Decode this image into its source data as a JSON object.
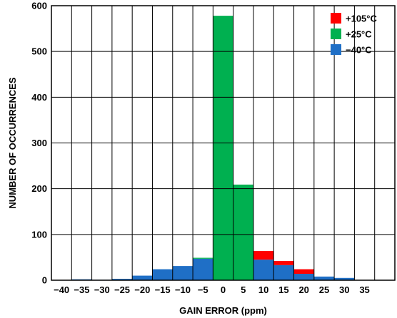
{
  "chart_data": {
    "type": "bar",
    "stacked": true,
    "xlabel": "GAIN ERROR (ppm)",
    "ylabel": "NUMBER OF OCCURRENCES",
    "ylim": [
      0,
      600
    ],
    "yticks": [
      0,
      100,
      200,
      300,
      400,
      500,
      600
    ],
    "xlim": [
      -42.5,
      42.5
    ],
    "xticks": [
      -40,
      -35,
      -30,
      -25,
      -20,
      -15,
      -10,
      -5,
      0,
      5,
      10,
      15,
      20,
      25,
      30,
      35
    ],
    "xtick_labels": [
      "−40",
      "−35",
      "−30",
      "−25",
      "−20",
      "−15",
      "−10",
      "−5",
      "0",
      "5",
      "10",
      "15",
      "20",
      "25",
      "30",
      "35"
    ],
    "bin_width": 5,
    "grid": true,
    "legend_position": "top-right",
    "categories": [
      -35,
      -30,
      -25,
      -20,
      -15,
      -10,
      -5,
      0,
      5,
      10,
      15,
      20,
      25,
      30
    ],
    "series": [
      {
        "name": "+105°C",
        "color": "#ff0000",
        "values": [
          0,
          0,
          0,
          0,
          0,
          0,
          0,
          0,
          0,
          19,
          9,
          10,
          0,
          0
        ]
      },
      {
        "name": "+25°C",
        "color": "#00b050",
        "values": [
          0,
          0,
          0,
          0,
          0,
          0,
          2,
          578,
          209,
          0,
          0,
          0,
          0,
          0
        ]
      },
      {
        "name": "−40°C",
        "color": "#1f6fc6",
        "values": [
          2,
          1,
          3,
          10,
          24,
          31,
          47,
          0,
          0,
          45,
          33,
          14,
          8,
          5
        ]
      }
    ]
  }
}
